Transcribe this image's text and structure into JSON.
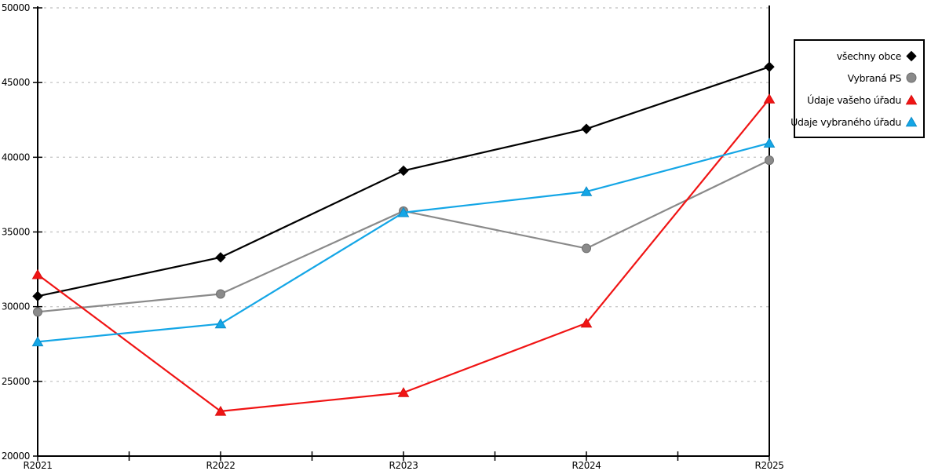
{
  "chart_data": {
    "type": "line",
    "title": "",
    "xlabel": "",
    "ylabel": "",
    "categories": [
      "R2021",
      "R2022",
      "R2023",
      "R2024",
      "R2025"
    ],
    "series": [
      {
        "name": "všechny obce",
        "marker": "diamond",
        "color": "#000000",
        "marker_edge": "#000000",
        "values": [
          30700,
          33300,
          39100,
          41900,
          46050
        ]
      },
      {
        "name": "Vybraná PS",
        "marker": "circle",
        "color": "#8a8a8a",
        "marker_edge": "#6e6e6e",
        "values": [
          29650,
          30850,
          36400,
          33900,
          39800
        ]
      },
      {
        "name": "Údaje vašeho úřadu",
        "marker": "triangle",
        "color": "#f01414",
        "marker_edge": "#d81010",
        "values": [
          32150,
          23000,
          24250,
          28900,
          43900
        ]
      },
      {
        "name": "Údaje vybraného úřadu",
        "marker": "triangle",
        "color": "#14a6e6",
        "marker_edge": "#0d8cc8",
        "values": [
          27650,
          28850,
          36300,
          37700,
          40950
        ]
      }
    ],
    "ylim": [
      20000,
      50000
    ],
    "ytick_step": 5000,
    "ytick_labels": [
      "20000",
      "25000",
      "30000",
      "35000",
      "40000",
      "45000",
      "50000"
    ],
    "grid": "horizontal-dashed",
    "gridline_color": "#c9c9c9",
    "axis_color": "#000000",
    "legend_position": "outside-top-right",
    "legend_entries": [
      "všechny obce",
      "Vybraná PS",
      "Údaje vašeho úřadu",
      "Údaje vybraného úřadu"
    ]
  }
}
